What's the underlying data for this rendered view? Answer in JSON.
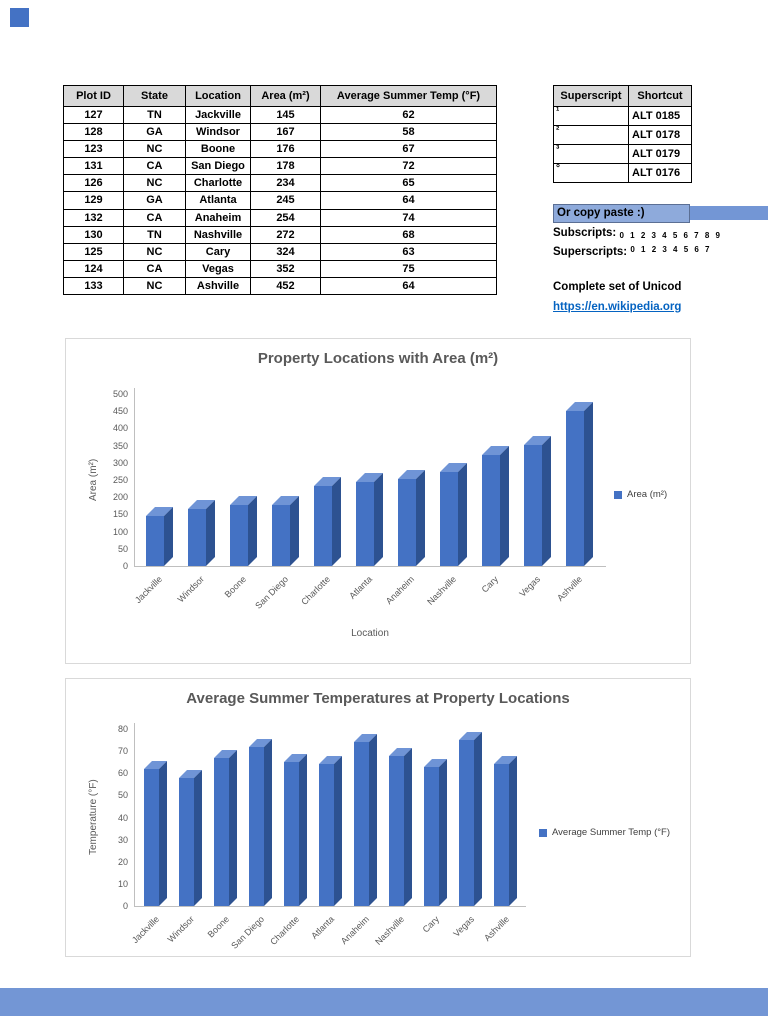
{
  "colors": {
    "bar_front": "#4472c4",
    "bar_top": "#6f94d6",
    "bar_side": "#2d5291",
    "accent_band": "#7396d5",
    "note_highlight": "#8eaadb",
    "link": "#0563c1",
    "table_header_bg": "#d9d9d9",
    "chart_text": "#595959"
  },
  "property_table": {
    "columns": [
      "Plot ID",
      "State",
      "Location",
      "Area (m²)",
      "Average Summer Temp (°F)"
    ],
    "rows": [
      [
        "127",
        "TN",
        "Jackville",
        "145",
        "62"
      ],
      [
        "128",
        "GA",
        "Windsor",
        "167",
        "58"
      ],
      [
        "123",
        "NC",
        "Boone",
        "176",
        "67"
      ],
      [
        "131",
        "CA",
        "San Diego",
        "178",
        "72"
      ],
      [
        "126",
        "NC",
        "Charlotte",
        "234",
        "65"
      ],
      [
        "129",
        "GA",
        "Atlanta",
        "245",
        "64"
      ],
      [
        "132",
        "CA",
        "Anaheim",
        "254",
        "74"
      ],
      [
        "130",
        "TN",
        "Nashville",
        "272",
        "68"
      ],
      [
        "125",
        "NC",
        "Cary",
        "324",
        "63"
      ],
      [
        "124",
        "CA",
        "Vegas",
        "352",
        "75"
      ],
      [
        "133",
        "NC",
        "Ashville",
        "452",
        "64"
      ]
    ]
  },
  "shortcut_table": {
    "columns": [
      "Superscript",
      "Shortcut"
    ],
    "rows": [
      [
        "¹",
        "ALT 0185"
      ],
      [
        "²",
        "ALT 0178"
      ],
      [
        "³",
        "ALT 0179"
      ],
      [
        "°",
        "ALT 0176"
      ]
    ]
  },
  "notes": {
    "copy_paste": "Or copy paste :)",
    "subscripts_label": "Subscripts:",
    "subscripts_chars": "0 1 2 3 4 5 6 7 8 9",
    "superscripts_label": "Superscripts:",
    "superscripts_chars": "0 1 2 3 4 5 6 7",
    "unicode_text": "Complete set of Unicod",
    "wiki_link": "https://en.wikipedia.org"
  },
  "chart_data": [
    {
      "type": "bar",
      "title": "Property Locations with Area (m²)",
      "categories": [
        "Jackville",
        "Windsor",
        "Boone",
        "San Diego",
        "Charlotte",
        "Atlanta",
        "Anaheim",
        "Nashville",
        "Cary",
        "Vegas",
        "Ashville"
      ],
      "series": [
        {
          "name": "Area (m²)",
          "values": [
            145,
            167,
            176,
            178,
            234,
            245,
            254,
            272,
            324,
            352,
            452
          ]
        }
      ],
      "xlabel": "Location",
      "ylabel": "Area (m²)",
      "ylim": [
        0,
        500
      ],
      "ytick_step": 50,
      "legend_position": "right",
      "grid": false
    },
    {
      "type": "bar",
      "title": "Average Summer Temperatures at Property Locations",
      "categories": [
        "Jackville",
        "Windsor",
        "Boone",
        "San Diego",
        "Charlotte",
        "Atlanta",
        "Anaheim",
        "Nashville",
        "Cary",
        "Vegas",
        "Ashville"
      ],
      "series": [
        {
          "name": "Average Summer Temp (°F)",
          "values": [
            62,
            58,
            67,
            72,
            65,
            64,
            74,
            68,
            63,
            75,
            64
          ]
        }
      ],
      "xlabel": "",
      "ylabel": "Temperature (°F)",
      "ylim": [
        0,
        80
      ],
      "ytick_step": 10,
      "legend_position": "right",
      "grid": false
    }
  ]
}
